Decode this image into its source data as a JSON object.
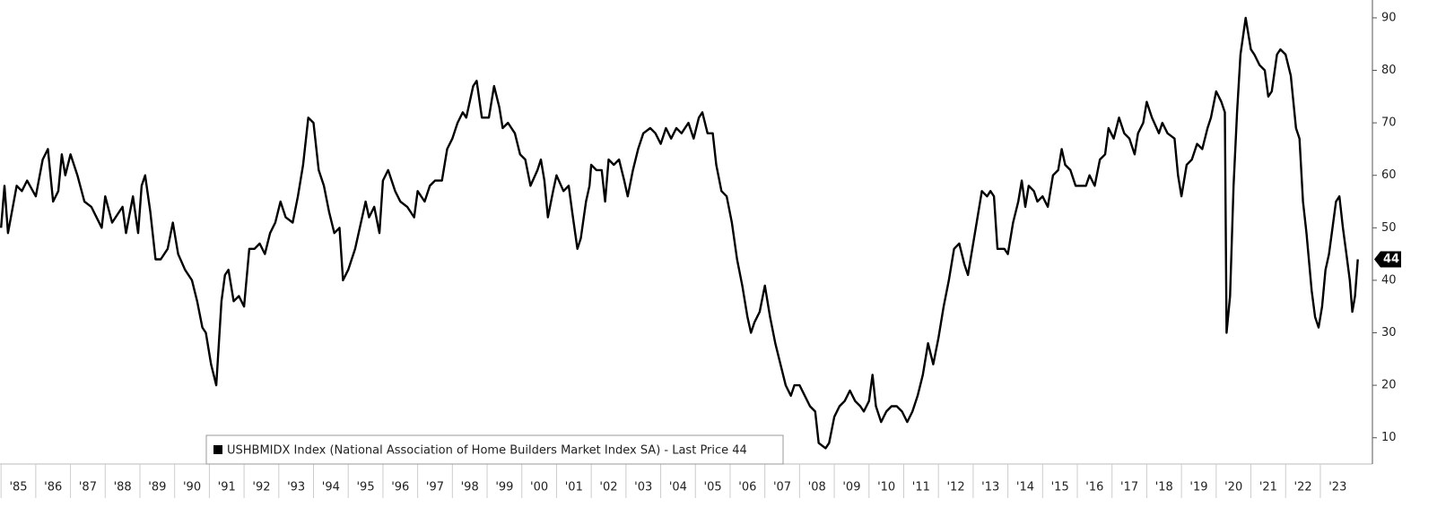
{
  "chart_data": {
    "type": "line",
    "series": [
      {
        "name": "USHBMIDX Index (National Association of Home Builders Market Index SA) - Last Price 44",
        "color": "#000000",
        "x": [
          1985.0,
          1985.1,
          1985.2,
          1985.45,
          1985.6,
          1985.75,
          1986.0,
          1986.2,
          1986.35,
          1986.5,
          1986.65,
          1986.75,
          1986.85,
          1987.0,
          1987.2,
          1987.4,
          1987.6,
          1987.9,
          1988.0,
          1988.2,
          1988.5,
          1988.6,
          1988.8,
          1988.95,
          1989.05,
          1989.15,
          1989.3,
          1989.45,
          1989.6,
          1989.8,
          1989.95,
          1990.1,
          1990.3,
          1990.5,
          1990.65,
          1990.8,
          1990.9,
          1991.05,
          1991.2,
          1991.35,
          1991.45,
          1991.55,
          1991.7,
          1991.85,
          1992.0,
          1992.15,
          1992.3,
          1992.45,
          1992.6,
          1992.75,
          1992.9,
          1993.05,
          1993.2,
          1993.4,
          1993.55,
          1993.7,
          1993.85,
          1994.0,
          1994.15,
          1994.3,
          1994.45,
          1994.6,
          1994.75,
          1994.85,
          1995.0,
          1995.2,
          1995.4,
          1995.5,
          1995.6,
          1995.75,
          1995.9,
          1996.0,
          1996.15,
          1996.35,
          1996.5,
          1996.7,
          1996.9,
          1997.0,
          1997.2,
          1997.35,
          1997.5,
          1997.7,
          1997.85,
          1998.0,
          1998.15,
          1998.3,
          1998.4,
          1998.6,
          1998.7,
          1998.85,
          1999.05,
          1999.2,
          1999.35,
          1999.45,
          1999.6,
          1999.8,
          1999.95,
          2000.1,
          2000.25,
          2000.45,
          2000.55,
          2000.65,
          2000.75,
          2000.9,
          2001.0,
          2001.2,
          2001.35,
          2001.45,
          2001.6,
          2001.7,
          2001.85,
          2001.95,
          2002.0,
          2002.15,
          2002.3,
          2002.4,
          2002.5,
          2002.65,
          2002.8,
          2002.95,
          2003.05,
          2003.2,
          2003.35,
          2003.5,
          2003.7,
          2003.85,
          2004.0,
          2004.15,
          2004.3,
          2004.45,
          2004.6,
          2004.8,
          2004.95,
          2005.1,
          2005.2,
          2005.35,
          2005.5,
          2005.6,
          2005.75,
          2005.9,
          2006.05,
          2006.2,
          2006.35,
          2006.5,
          2006.6,
          2006.7,
          2006.85,
          2007.0,
          2007.15,
          2007.3,
          2007.45,
          2007.6,
          2007.75,
          2007.85,
          2008.0,
          2008.15,
          2008.3,
          2008.45,
          2008.55,
          2008.75,
          2008.85,
          2009.0,
          2009.15,
          2009.3,
          2009.45,
          2009.6,
          2009.75,
          2009.85,
          2010.0,
          2010.1,
          2010.2,
          2010.35,
          2010.5,
          2010.65,
          2010.8,
          2010.95,
          2011.1,
          2011.25,
          2011.4,
          2011.55,
          2011.7,
          2011.85,
          2012.0,
          2012.15,
          2012.3,
          2012.45,
          2012.6,
          2012.75,
          2012.85,
          2013.0,
          2013.1,
          2013.25,
          2013.4,
          2013.5,
          2013.6,
          2013.7,
          2013.9,
          2014.0,
          2014.15,
          2014.3,
          2014.4,
          2014.5,
          2014.6,
          2014.75,
          2014.85,
          2015.0,
          2015.15,
          2015.3,
          2015.45,
          2015.55,
          2015.65,
          2015.8,
          2015.95,
          2016.1,
          2016.25,
          2016.35,
          2016.5,
          2016.65,
          2016.8,
          2016.9,
          2017.05,
          2017.2,
          2017.35,
          2017.5,
          2017.65,
          2017.75,
          2017.9,
          2018.0,
          2018.15,
          2018.35,
          2018.45,
          2018.6,
          2018.8,
          2018.9,
          2019.0,
          2019.15,
          2019.3,
          2019.45,
          2019.6,
          2019.75,
          2019.85,
          2020.0,
          2020.15,
          2020.25,
          2020.3,
          2020.4,
          2020.5,
          2020.6,
          2020.7,
          2020.85,
          2021.0,
          2021.1,
          2021.25,
          2021.4,
          2021.5,
          2021.6,
          2021.75,
          2021.85,
          2022.0,
          2022.15,
          2022.3,
          2022.4,
          2022.5,
          2022.6,
          2022.75,
          2022.85,
          2022.95,
          2023.05,
          2023.15,
          2023.25,
          2023.35,
          2023.45,
          2023.55,
          2023.65,
          2023.75,
          2023.85,
          2023.92,
          2024.0,
          2024.08
        ],
        "values": [
          50,
          58,
          49,
          58,
          57,
          59,
          56,
          63,
          65,
          55,
          57,
          64,
          60,
          64,
          60,
          55,
          54,
          50,
          56,
          51,
          54,
          49,
          56,
          49,
          58,
          60,
          53,
          44,
          44,
          46,
          51,
          45,
          42,
          40,
          36,
          31,
          30,
          24,
          20,
          36,
          41,
          42,
          36,
          37,
          35,
          46,
          46,
          47,
          45,
          49,
          51,
          55,
          52,
          51,
          56,
          62,
          71,
          70,
          61,
          58,
          53,
          49,
          50,
          40,
          42,
          46,
          52,
          55,
          52,
          54,
          49,
          59,
          61,
          57,
          55,
          54,
          52,
          57,
          55,
          58,
          59,
          59,
          65,
          67,
          70,
          72,
          71,
          77,
          78,
          71,
          71,
          77,
          73,
          69,
          70,
          68,
          64,
          63,
          58,
          61,
          63,
          59,
          52,
          57,
          60,
          57,
          58,
          53,
          46,
          48,
          55,
          58,
          62,
          61,
          61,
          55,
          63,
          62,
          63,
          59,
          56,
          61,
          65,
          68,
          69,
          68,
          66,
          69,
          67,
          69,
          68,
          70,
          67,
          71,
          72,
          68,
          68,
          62,
          57,
          56,
          51,
          44,
          39,
          33,
          30,
          32,
          34,
          39,
          33,
          28,
          24,
          20,
          18,
          20,
          20,
          18,
          16,
          15,
          9,
          8,
          9,
          14,
          16,
          17,
          19,
          17,
          16,
          15,
          17,
          22,
          16,
          13,
          15,
          16,
          16,
          15,
          13,
          15,
          18,
          22,
          28,
          24,
          29,
          35,
          40,
          46,
          47,
          43,
          41,
          47,
          51,
          57,
          56,
          57,
          56,
          46,
          46,
          45,
          51,
          55,
          59,
          54,
          58,
          57,
          55,
          56,
          54,
          60,
          61,
          65,
          62,
          61,
          58,
          58,
          58,
          60,
          58,
          63,
          64,
          69,
          67,
          71,
          68,
          67,
          64,
          68,
          70,
          74,
          71,
          68,
          70,
          68,
          67,
          60,
          56,
          62,
          63,
          66,
          65,
          69,
          71,
          76,
          74,
          72,
          30,
          37,
          58,
          72,
          83,
          90,
          84,
          83,
          81,
          80,
          75,
          76,
          83,
          84,
          83,
          79,
          69,
          67,
          55,
          49,
          38,
          33,
          31,
          35,
          42,
          45,
          50,
          55,
          56,
          50,
          45,
          40,
          34,
          37,
          44
        ]
      }
    ],
    "last_price": 44,
    "xlim": [
      1984.97,
      2024.5
    ],
    "xticks": [
      {
        "value": 1985,
        "label": "'85"
      },
      {
        "value": 1986,
        "label": "'86"
      },
      {
        "value": 1987,
        "label": "'87"
      },
      {
        "value": 1988,
        "label": "'88"
      },
      {
        "value": 1989,
        "label": "'89"
      },
      {
        "value": 1990,
        "label": "'90"
      },
      {
        "value": 1991,
        "label": "'91"
      },
      {
        "value": 1992,
        "label": "'92"
      },
      {
        "value": 1993,
        "label": "'93"
      },
      {
        "value": 1994,
        "label": "'94"
      },
      {
        "value": 1995,
        "label": "'95"
      },
      {
        "value": 1996,
        "label": "'96"
      },
      {
        "value": 1997,
        "label": "'97"
      },
      {
        "value": 1998,
        "label": "'98"
      },
      {
        "value": 1999,
        "label": "'99"
      },
      {
        "value": 2000,
        "label": "'00"
      },
      {
        "value": 2001,
        "label": "'01"
      },
      {
        "value": 2002,
        "label": "'02"
      },
      {
        "value": 2003,
        "label": "'03"
      },
      {
        "value": 2004,
        "label": "'04"
      },
      {
        "value": 2005,
        "label": "'05"
      },
      {
        "value": 2006,
        "label": "'06"
      },
      {
        "value": 2007,
        "label": "'07"
      },
      {
        "value": 2008,
        "label": "'08"
      },
      {
        "value": 2009,
        "label": "'09"
      },
      {
        "value": 2010,
        "label": "'10"
      },
      {
        "value": 2011,
        "label": "'11"
      },
      {
        "value": 2012,
        "label": "'12"
      },
      {
        "value": 2013,
        "label": "'13"
      },
      {
        "value": 2014,
        "label": "'14"
      },
      {
        "value": 2015,
        "label": "'15"
      },
      {
        "value": 2016,
        "label": "'16"
      },
      {
        "value": 2017,
        "label": "'17"
      },
      {
        "value": 2018,
        "label": "'18"
      },
      {
        "value": 2019,
        "label": "'19"
      },
      {
        "value": 2020,
        "label": "'20"
      },
      {
        "value": 2021,
        "label": "'21"
      },
      {
        "value": 2022,
        "label": "'22"
      },
      {
        "value": 2023,
        "label": "'23"
      }
    ],
    "ylim": [
      5,
      93.4
    ],
    "yticks": [
      10,
      20,
      30,
      40,
      50,
      60,
      70,
      80,
      90
    ]
  }
}
